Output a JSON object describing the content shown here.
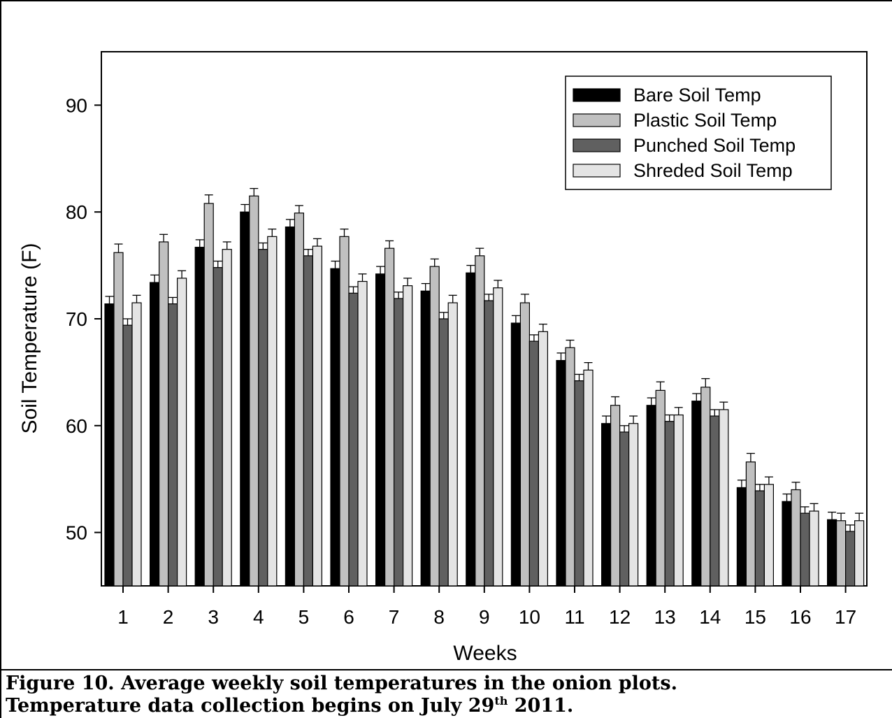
{
  "chart_data": {
    "type": "bar",
    "xlabel": "Weeks",
    "ylabel": "Soil Temperature (F)",
    "ylim": [
      45,
      95
    ],
    "yticks": [
      50,
      60,
      70,
      80,
      90
    ],
    "categories": [
      "1",
      "2",
      "3",
      "4",
      "5",
      "6",
      "7",
      "8",
      "9",
      "10",
      "11",
      "12",
      "13",
      "14",
      "15",
      "16",
      "17"
    ],
    "legend_position": "top-right",
    "series": [
      {
        "name": "Bare Soil Temp",
        "color": "#000000",
        "values": [
          71.4,
          73.4,
          76.7,
          80.0,
          78.6,
          74.7,
          74.2,
          72.6,
          74.3,
          69.6,
          66.1,
          60.2,
          61.9,
          62.3,
          54.2,
          52.9,
          51.2
        ],
        "errors": [
          0.7,
          0.7,
          0.7,
          0.7,
          0.7,
          0.7,
          0.7,
          0.7,
          0.7,
          0.7,
          0.7,
          0.7,
          0.7,
          0.7,
          0.7,
          0.7,
          0.7
        ]
      },
      {
        "name": "Plastic Soil Temp",
        "color": "#c0c0c0",
        "values": [
          76.2,
          77.2,
          80.8,
          81.5,
          79.9,
          77.7,
          76.6,
          74.9,
          75.9,
          71.5,
          67.3,
          61.9,
          63.3,
          63.6,
          56.6,
          54.0,
          51.1
        ],
        "errors": [
          0.8,
          0.7,
          0.8,
          0.7,
          0.7,
          0.7,
          0.7,
          0.7,
          0.7,
          0.8,
          0.7,
          0.8,
          0.8,
          0.8,
          0.8,
          0.7,
          0.7
        ]
      },
      {
        "name": "Punched Soil Temp",
        "color": "#606060",
        "values": [
          69.4,
          71.4,
          74.8,
          76.5,
          75.9,
          72.4,
          71.9,
          70.0,
          71.7,
          67.9,
          64.2,
          59.4,
          60.4,
          60.9,
          53.9,
          51.8,
          50.1
        ],
        "errors": [
          0.6,
          0.6,
          0.6,
          0.6,
          0.6,
          0.6,
          0.6,
          0.6,
          0.6,
          0.6,
          0.6,
          0.6,
          0.6,
          0.6,
          0.6,
          0.6,
          0.6
        ]
      },
      {
        "name": "Shreded Soil Temp",
        "color": "#e4e4e4",
        "values": [
          71.5,
          73.8,
          76.5,
          77.7,
          76.8,
          73.5,
          73.1,
          71.5,
          72.9,
          68.8,
          65.2,
          60.2,
          61.0,
          61.5,
          54.5,
          52.0,
          51.1
        ],
        "errors": [
          0.7,
          0.7,
          0.7,
          0.7,
          0.7,
          0.7,
          0.7,
          0.7,
          0.7,
          0.7,
          0.7,
          0.7,
          0.7,
          0.7,
          0.7,
          0.7,
          0.7
        ]
      }
    ]
  },
  "caption": {
    "line1": "Figure 10. Average weekly soil temperatures in the onion plots.",
    "line2_pre": "Temperature data collection begins on July 29",
    "line2_sup": "th",
    "line2_post": " 2011."
  }
}
